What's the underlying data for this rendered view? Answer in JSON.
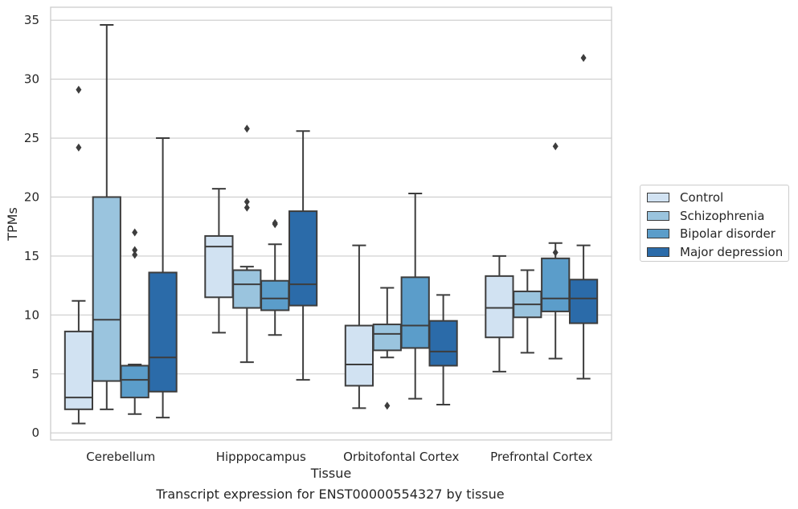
{
  "chart_data": {
    "type": "box",
    "caption": "Transcript expression for ENST00000554327 by tissue",
    "xlabel": "Tissue",
    "ylabel": "TPMs",
    "ylim": [
      -0.6,
      36.1
    ],
    "yticks": [
      0,
      5,
      10,
      15,
      20,
      25,
      30,
      35
    ],
    "grid": true,
    "legend_position": "right",
    "categories": [
      "Cerebellum",
      "Hipppocampus",
      "Orbitofontal Cortex",
      "Prefrontal Cortex"
    ],
    "series": [
      {
        "name": "Control",
        "color": "#d1e2f2",
        "boxes": [
          {
            "whislo": 0.8,
            "q1": 2.0,
            "med": 3.0,
            "q3": 8.6,
            "whishi": 11.2,
            "fliers": [
              24.2,
              29.1
            ]
          },
          {
            "whislo": 8.5,
            "q1": 11.5,
            "med": 15.8,
            "q3": 16.7,
            "whishi": 20.7,
            "fliers": []
          },
          {
            "whislo": 2.1,
            "q1": 4.0,
            "med": 5.8,
            "q3": 9.1,
            "whishi": 15.9,
            "fliers": []
          },
          {
            "whislo": 5.2,
            "q1": 8.1,
            "med": 10.6,
            "q3": 13.3,
            "whishi": 15.0,
            "fliers": []
          }
        ]
      },
      {
        "name": "Schizophrenia",
        "color": "#9ac4de",
        "boxes": [
          {
            "whislo": 2.0,
            "q1": 4.4,
            "med": 9.6,
            "q3": 20.0,
            "whishi": 34.6,
            "fliers": []
          },
          {
            "whislo": 6.0,
            "q1": 10.6,
            "med": 12.6,
            "q3": 13.8,
            "whishi": 14.1,
            "fliers": [
              19.1,
              19.6,
              25.8
            ]
          },
          {
            "whislo": 6.4,
            "q1": 7.0,
            "med": 8.4,
            "q3": 9.2,
            "whishi": 12.3,
            "fliers": [
              2.3
            ]
          },
          {
            "whislo": 6.8,
            "q1": 9.8,
            "med": 10.9,
            "q3": 12.0,
            "whishi": 13.8,
            "fliers": []
          }
        ]
      },
      {
        "name": "Bipolar disorder",
        "color": "#5b9dca",
        "boxes": [
          {
            "whislo": 1.6,
            "q1": 3.0,
            "med": 4.5,
            "q3": 5.7,
            "whishi": 5.8,
            "fliers": [
              15.1,
              15.5,
              17.0
            ]
          },
          {
            "whislo": 8.3,
            "q1": 10.4,
            "med": 11.4,
            "q3": 12.9,
            "whishi": 16.0,
            "fliers": [
              17.7,
              17.8
            ]
          },
          {
            "whislo": 2.9,
            "q1": 7.2,
            "med": 9.1,
            "q3": 13.2,
            "whishi": 20.3,
            "fliers": []
          },
          {
            "whislo": 6.3,
            "q1": 10.3,
            "med": 11.4,
            "q3": 14.8,
            "whishi": 16.1,
            "fliers": [
              15.3,
              24.3
            ]
          }
        ]
      },
      {
        "name": "Major depression",
        "color": "#2b6ba9",
        "boxes": [
          {
            "whislo": 1.3,
            "q1": 3.5,
            "med": 6.4,
            "q3": 13.6,
            "whishi": 25.0,
            "fliers": []
          },
          {
            "whislo": 4.5,
            "q1": 10.8,
            "med": 12.6,
            "q3": 18.8,
            "whishi": 25.6,
            "fliers": []
          },
          {
            "whislo": 2.4,
            "q1": 5.7,
            "med": 6.9,
            "q3": 9.5,
            "whishi": 11.7,
            "fliers": []
          },
          {
            "whislo": 4.6,
            "q1": 9.3,
            "med": 11.4,
            "q3": 13.0,
            "whishi": 15.9,
            "fliers": [
              31.8
            ]
          }
        ]
      }
    ]
  }
}
